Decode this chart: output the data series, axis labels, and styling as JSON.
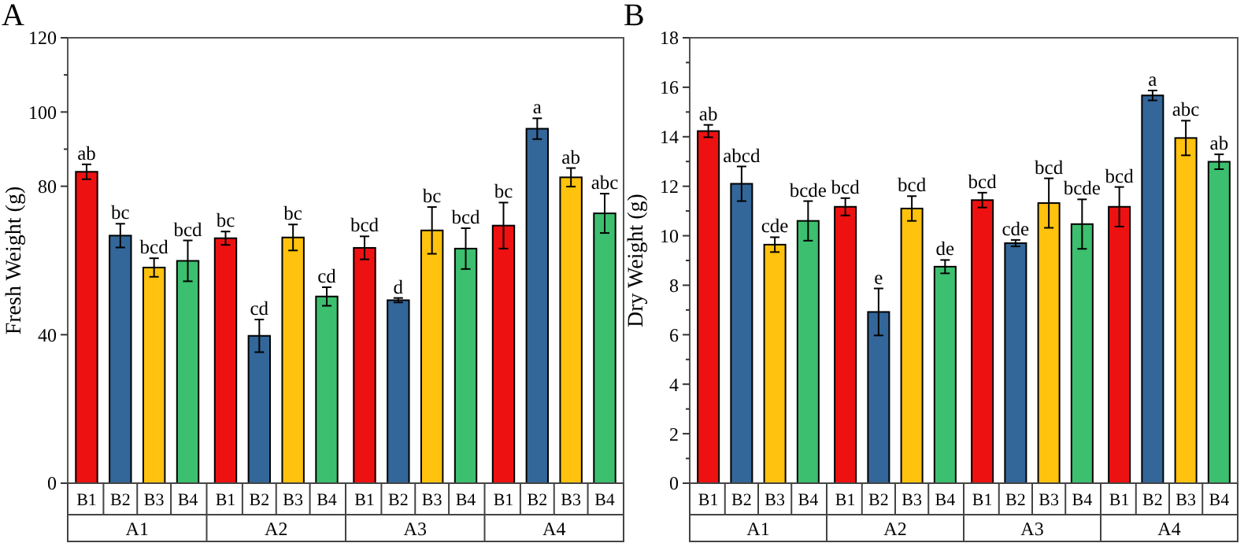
{
  "chart_data": [
    {
      "type": "bar",
      "title": "A",
      "ylabel": "Fresh Weight (g)",
      "categories": [
        "A1",
        "A2",
        "A3",
        "A4"
      ],
      "ylim": [
        0,
        120
      ],
      "yticks": [
        0,
        40,
        80,
        {
          "value": 90,
          "label": null
        },
        100,
        {
          "value": 110,
          "label": null
        },
        120
      ],
      "series": [
        {
          "name": "B1",
          "color": "#ee1111",
          "values": [
            83.9,
            66.0,
            63.4,
            69.4
          ],
          "errors": [
            2.0,
            1.8,
            3.1,
            6.2
          ],
          "value_labels": [
            "ab",
            "bc",
            "bcd",
            "bc"
          ]
        },
        {
          "name": "B2",
          "color": "#336699",
          "values": [
            66.7,
            39.7,
            49.3,
            95.5
          ],
          "errors": [
            3.2,
            4.4,
            0.6,
            2.8
          ],
          "value_labels": [
            "bc",
            "cd",
            "d",
            "a"
          ]
        },
        {
          "name": "B3",
          "color": "#ffc20e",
          "values": [
            58.1,
            66.2,
            68.1,
            82.4
          ],
          "errors": [
            2.5,
            3.5,
            6.3,
            2.5
          ],
          "value_labels": [
            "bcd",
            "bc",
            "bc",
            "ab"
          ]
        },
        {
          "name": "B4",
          "color": "#3cbf6e",
          "values": [
            59.9,
            50.3,
            63.2,
            72.7
          ],
          "errors": [
            5.5,
            2.5,
            5.5,
            5.3
          ],
          "value_labels": [
            "bcd",
            "cd",
            "bcd",
            "abc"
          ]
        }
      ]
    },
    {
      "type": "bar",
      "title": "B",
      "ylabel": "Dry Weight (g)",
      "categories": [
        "A1",
        "A2",
        "A3",
        "A4"
      ],
      "ylim": [
        0,
        18
      ],
      "yticks": [
        0,
        {
          "value": 1,
          "label": null
        },
        2,
        {
          "value": 3,
          "label": null
        },
        4,
        {
          "value": 5,
          "label": null
        },
        6,
        {
          "value": 7,
          "label": null
        },
        8,
        {
          "value": 9,
          "label": null
        },
        10,
        {
          "value": 11,
          "label": null
        },
        12,
        {
          "value": 13,
          "label": null
        },
        14,
        {
          "value": 15,
          "label": null
        },
        16,
        {
          "value": 17,
          "label": null
        },
        18
      ],
      "series": [
        {
          "name": "B1",
          "color": "#ee1111",
          "values": [
            14.23,
            11.17,
            11.44,
            11.17
          ],
          "errors": [
            0.25,
            0.35,
            0.3,
            0.8
          ],
          "value_labels": [
            "ab",
            "bcd",
            "bcd",
            "bcd"
          ]
        },
        {
          "name": "B2",
          "color": "#336699",
          "values": [
            12.1,
            6.92,
            9.7,
            15.67
          ],
          "errors": [
            0.7,
            0.95,
            0.13,
            0.2
          ],
          "value_labels": [
            "abcd",
            "e",
            "cde",
            "a"
          ]
        },
        {
          "name": "B3",
          "color": "#ffc20e",
          "values": [
            9.64,
            11.1,
            11.32,
            13.95
          ],
          "errors": [
            0.3,
            0.5,
            1.0,
            0.7
          ],
          "value_labels": [
            "cde",
            "bcd",
            "bcd",
            "abc"
          ]
        },
        {
          "name": "B4",
          "color": "#3cbf6e",
          "values": [
            10.6,
            8.75,
            10.47,
            12.99
          ],
          "errors": [
            0.8,
            0.27,
            1.0,
            0.3
          ],
          "value_labels": [
            "bcde",
            "de",
            "bcde",
            "ab"
          ]
        }
      ]
    }
  ]
}
